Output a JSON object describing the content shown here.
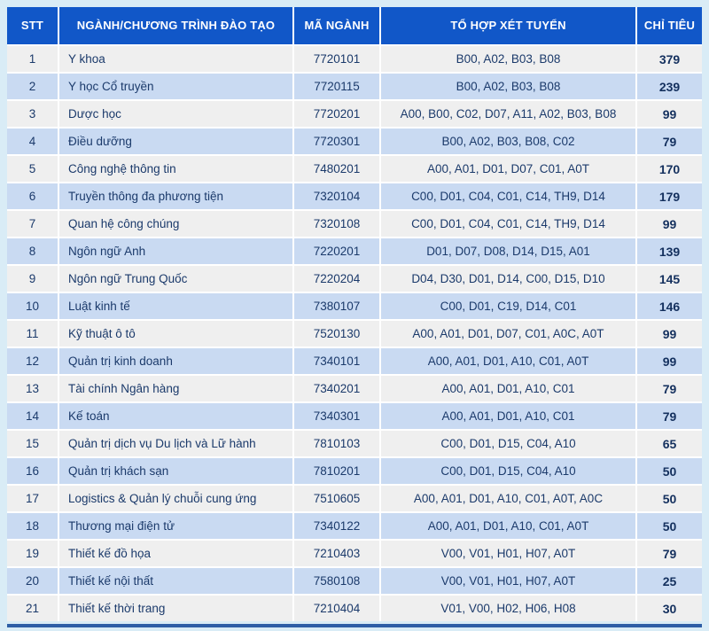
{
  "page": {
    "background_color": "#d9ecf6",
    "header_color": "#1157c8",
    "row_odd_color": "#efefef",
    "row_even_color": "#c9daf2",
    "text_color": "#1b3a6b",
    "quota_text_color": "#14305e",
    "bottom_bar_color": "#2e5ea6"
  },
  "table": {
    "columns": [
      {
        "key": "stt",
        "label": "STT"
      },
      {
        "key": "nganh",
        "label": "NGÀNH/CHƯƠNG TRÌNH ĐÀO TẠO"
      },
      {
        "key": "ma-nganh",
        "label": "MÃ NGÀNH"
      },
      {
        "key": "to-hop",
        "label": "TỔ HỢP XÉT TUYỂN"
      },
      {
        "key": "chi-tieu",
        "label": "CHỈ TIÊU"
      }
    ],
    "rows": [
      [
        "1",
        "Y khoa",
        "7720101",
        "B00, A02, B03, B08",
        "379"
      ],
      [
        "2",
        "Y học Cổ truyền",
        "7720115",
        "B00, A02, B03, B08",
        "239"
      ],
      [
        "3",
        "Dược học",
        "7720201",
        "A00, B00, C02, D07, A11, A02, B03, B08",
        "99"
      ],
      [
        "4",
        "Điều dưỡng",
        "7720301",
        "B00, A02, B03, B08, C02",
        "79"
      ],
      [
        "5",
        "Công nghệ thông tin",
        "7480201",
        "A00, A01, D01, D07, C01, A0T",
        "170"
      ],
      [
        "6",
        "Truyền thông đa phương tiện",
        "7320104",
        "C00, D01, C04, C01, C14, TH9, D14",
        "179"
      ],
      [
        "7",
        "Quan hệ công chúng",
        "7320108",
        "C00, D01, C04, C01, C14, TH9, D14",
        "99"
      ],
      [
        "8",
        "Ngôn ngữ Anh",
        "7220201",
        "D01, D07, D08, D14, D15, A01",
        "139"
      ],
      [
        "9",
        "Ngôn ngữ Trung Quốc",
        "7220204",
        "D04, D30, D01, D14, C00, D15, D10",
        "145"
      ],
      [
        "10",
        "Luật kinh tế",
        "7380107",
        "C00, D01, C19, D14, C01",
        "146"
      ],
      [
        "11",
        "Kỹ thuật ô tô",
        "7520130",
        "A00, A01, D01, D07, C01, A0C, A0T",
        "99"
      ],
      [
        "12",
        "Quản trị kinh doanh",
        "7340101",
        "A00, A01, D01, A10, C01, A0T",
        "99"
      ],
      [
        "13",
        "Tài chính Ngân hàng",
        "7340201",
        "A00, A01, D01, A10, C01",
        "79"
      ],
      [
        "14",
        "Kế toán",
        "7340301",
        "A00, A01, D01, A10, C01",
        "79"
      ],
      [
        "15",
        "Quản trị dịch vụ Du lịch và Lữ hành",
        "7810103",
        "C00, D01, D15, C04, A10",
        "65"
      ],
      [
        "16",
        "Quản trị khách sạn",
        "7810201",
        "C00, D01, D15, C04, A10",
        "50"
      ],
      [
        "17",
        "Logistics & Quản lý chuỗi cung ứng",
        "7510605",
        "A00, A01, D01, A10, C01, A0T, A0C",
        "50"
      ],
      [
        "18",
        "Thương mại điện tử",
        "7340122",
        "A00, A01, D01, A10, C01, A0T",
        "50"
      ],
      [
        "19",
        "Thiết kế đồ họa",
        "7210403",
        "V00, V01, H01, H07, A0T",
        "79"
      ],
      [
        "20",
        "Thiết kế nội thất",
        "7580108",
        "V00, V01, H01, H07, A0T",
        "25"
      ],
      [
        "21",
        "Thiết kế thời trang",
        "7210404",
        "V01, V00, H02, H06, H08",
        "30"
      ]
    ]
  }
}
